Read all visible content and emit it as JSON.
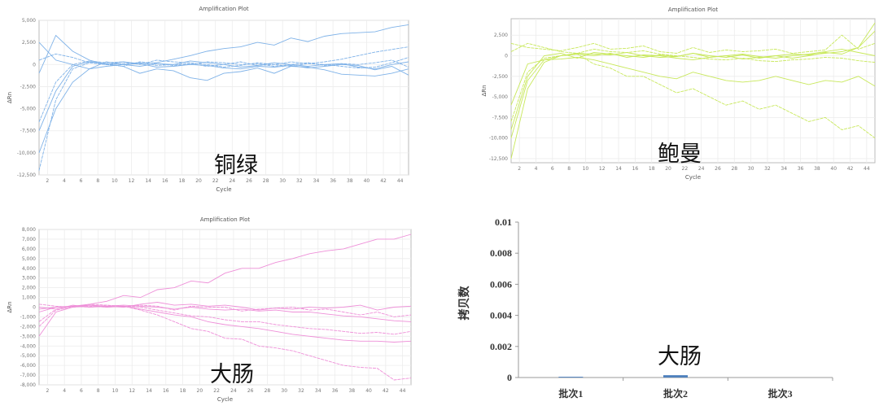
{
  "chart_data": [
    {
      "type": "line",
      "title": "Amplification Plot",
      "xlabel": "Cycle",
      "ylabel": "ΔRn",
      "annotation": "铜绿",
      "color": "#7fb2e8",
      "xlim": [
        1,
        45
      ],
      "ylim": [
        -12500,
        5000
      ],
      "xticks": [
        2,
        4,
        6,
        8,
        10,
        12,
        14,
        16,
        18,
        20,
        22,
        24,
        26,
        28,
        30,
        32,
        34,
        36,
        38,
        40,
        42,
        44
      ],
      "yticks": [
        5000,
        2500,
        0,
        -2500,
        -5000,
        -7500,
        -10000,
        -12500
      ],
      "ytick_labels": [
        "5,000",
        "2,500",
        "0",
        "-2,500",
        "-5,000",
        "-7,500",
        "-10,000",
        "-12,500"
      ],
      "grid": true,
      "x_start": 1,
      "x_step": 2,
      "series": [
        {
          "values": [
            -1000,
            3300,
            1500,
            500,
            0,
            300,
            100,
            200,
            600,
            1000,
            1500,
            1800,
            2000,
            2500,
            2200,
            3000,
            2600,
            3200,
            3500,
            3600,
            3700,
            4200,
            4500
          ]
        },
        {
          "values": [
            -12000,
            -4000,
            -500,
            200,
            0,
            100,
            200,
            -100,
            0,
            100,
            -200,
            0,
            300,
            -100,
            0,
            -200,
            100,
            300,
            600,
            1000,
            1400,
            1700,
            2000
          ]
        },
        {
          "values": [
            -7500,
            -3000,
            -200,
            300,
            100,
            -200,
            -1000,
            -500,
            -700,
            -1500,
            -1800,
            -1000,
            -800,
            -400,
            -1000,
            -200,
            -300,
            -600,
            -1100,
            -1200,
            -1300,
            -1000,
            -500
          ]
        },
        {
          "values": [
            -6500,
            -2000,
            0,
            400,
            200,
            300,
            0,
            500,
            300,
            200,
            0,
            -300,
            -100,
            200,
            0,
            300,
            100,
            0,
            -200,
            -400,
            -300,
            200,
            800
          ]
        },
        {
          "values": [
            -10000,
            -5000,
            -2000,
            -500,
            300,
            0,
            -200,
            100,
            0,
            400,
            200,
            0,
            -300,
            -100,
            200,
            0,
            -200,
            0,
            100,
            -300,
            -500,
            0,
            300
          ]
        },
        {
          "values": [
            500,
            1200,
            800,
            200,
            0,
            -200,
            300,
            100,
            -100,
            0,
            300,
            200,
            0,
            100,
            -200,
            0,
            200,
            -100,
            100,
            0,
            200,
            500,
            -300
          ]
        },
        {
          "values": [
            2500,
            500,
            0,
            -500,
            -200,
            0,
            100,
            -300,
            -200,
            0,
            -100,
            -400,
            -500,
            -200,
            -300,
            -100,
            -400,
            -200,
            0,
            -100,
            -600,
            -200,
            -1200
          ]
        }
      ]
    },
    {
      "type": "line",
      "title": "Amplification Plot",
      "xlabel": "Cycle",
      "ylabel": "ΔRn",
      "annotation": "鲍曼",
      "color": "#c8e85a",
      "xlim": [
        1,
        45
      ],
      "ylim": [
        -13000,
        4500
      ],
      "xticks": [
        2,
        4,
        6,
        8,
        10,
        12,
        14,
        16,
        18,
        20,
        22,
        24,
        26,
        28,
        30,
        32,
        34,
        36,
        38,
        40,
        42,
        44
      ],
      "yticks": [
        2500,
        0,
        -2500,
        -5000,
        -7500,
        -10000,
        -12500
      ],
      "ytick_labels": [
        "2,500",
        "0",
        "-2,500",
        "-5,000",
        "-7,500",
        "-10,000",
        "-12,500"
      ],
      "grid": true,
      "x_start": 1,
      "x_step": 2,
      "series": [
        {
          "values": [
            -12500,
            -4000,
            -800,
            0,
            300,
            200,
            100,
            400,
            0,
            -200,
            -100,
            300,
            0,
            -200,
            100,
            -300,
            0,
            200,
            100,
            300,
            500,
            1000,
            4000
          ]
        },
        {
          "values": [
            -8000,
            -2000,
            -300,
            0,
            200,
            -1000,
            -1500,
            -2500,
            -2500,
            -3500,
            -4500,
            -4000,
            -5000,
            -6000,
            -5500,
            -6500,
            -6000,
            -7000,
            -8000,
            -7500,
            -9000,
            -8500,
            -10000
          ]
        },
        {
          "values": [
            -6000,
            -1000,
            -500,
            -400,
            -200,
            -500,
            -1000,
            -1500,
            -2000,
            -2500,
            -2800,
            -2000,
            -2500,
            -3000,
            -3200,
            -3000,
            -2500,
            -3000,
            -3500,
            -3000,
            -3200,
            -2500,
            -3700
          ]
        },
        {
          "values": [
            1500,
            1000,
            800,
            600,
            1000,
            1500,
            800,
            900,
            1200,
            500,
            300,
            1000,
            400,
            700,
            500,
            600,
            800,
            300,
            500,
            700,
            2500,
            800,
            1500
          ]
        },
        {
          "values": [
            -10000,
            -3000,
            -500,
            0,
            200,
            0,
            300,
            -200,
            100,
            0,
            -300,
            -500,
            -200,
            0,
            -400,
            -200,
            0,
            -300,
            0,
            400,
            200,
            1000,
            3000
          ]
        },
        {
          "values": [
            500,
            1500,
            1000,
            500,
            300,
            800,
            500,
            400,
            600,
            200,
            0,
            -200,
            -400,
            -500,
            -300,
            -600,
            -700,
            -500,
            -400,
            -200,
            -300,
            -600,
            -800
          ]
        },
        {
          "values": [
            -9000,
            -2500,
            0,
            300,
            -300,
            400,
            200,
            0,
            -200,
            100,
            -100,
            300,
            -200,
            0,
            200,
            -100,
            -300,
            0,
            200,
            500,
            800,
            400,
            0
          ]
        }
      ]
    },
    {
      "type": "line",
      "title": "Amplification Plot",
      "xlabel": "Cycle",
      "ylabel": "ΔRn",
      "annotation": "大肠",
      "color": "#ee8fd8",
      "xlim": [
        1,
        45
      ],
      "ylim": [
        -8000,
        8000
      ],
      "xticks": [
        2,
        4,
        6,
        8,
        10,
        12,
        14,
        16,
        18,
        20,
        22,
        24,
        26,
        28,
        30,
        32,
        34,
        36,
        38,
        40,
        42,
        44
      ],
      "yticks": [
        8000,
        7000,
        6000,
        5000,
        4000,
        3000,
        2000,
        1000,
        0,
        -1000,
        -2000,
        -3000,
        -4000,
        -5000,
        -6000,
        -7000,
        -8000
      ],
      "ytick_labels": [
        "8,000",
        "7,000",
        "6,000",
        "5,000",
        "4,000",
        "3,000",
        "2,000",
        "1,000",
        "0",
        "-1,000",
        "-2,000",
        "-3,000",
        "-4,000",
        "-5,000",
        "-6,000",
        "-7,000",
        "-8,000"
      ],
      "grid": true,
      "x_start": 1,
      "x_step": 2,
      "series": [
        {
          "values": [
            -200,
            0,
            100,
            300,
            600,
            1200,
            1000,
            1800,
            2000,
            2700,
            2500,
            3500,
            4000,
            4000,
            4600,
            5000,
            5500,
            5800,
            6000,
            6500,
            7000,
            7000,
            7500
          ]
        },
        {
          "values": [
            -2000,
            -300,
            0,
            100,
            0,
            100,
            -300,
            -800,
            -1500,
            -2200,
            -2500,
            -3200,
            -3300,
            -4000,
            -4200,
            -4500,
            -5000,
            -5500,
            -6000,
            -6200,
            -6300,
            -7500,
            -7300
          ]
        },
        {
          "values": [
            -3000,
            -500,
            0,
            200,
            0,
            100,
            -200,
            -500,
            -800,
            -1000,
            -1500,
            -1800,
            -2000,
            -2200,
            -2500,
            -2800,
            -3000,
            -3200,
            -3400,
            -3500,
            -3500,
            -3600,
            -3500
          ]
        },
        {
          "values": [
            -1500,
            -200,
            100,
            0,
            200,
            100,
            0,
            -300,
            -600,
            -900,
            -1000,
            -1300,
            -1500,
            -1500,
            -1800,
            -2000,
            -2200,
            -2300,
            -2500,
            -2700,
            -2600,
            -2800,
            -2500
          ]
        },
        {
          "values": [
            -500,
            0,
            100,
            200,
            100,
            200,
            100,
            0,
            -200,
            0,
            -200,
            -300,
            -200,
            -400,
            -300,
            -500,
            -500,
            -700,
            -900,
            -1000,
            -1200,
            -1400,
            -1500
          ]
        },
        {
          "values": [
            300,
            100,
            0,
            300,
            200,
            0,
            200,
            100,
            -300,
            100,
            0,
            0,
            -400,
            -200,
            -100,
            0,
            -300,
            -200,
            -500,
            -800,
            -500,
            -1000,
            -800
          ]
        },
        {
          "values": [
            0,
            -200,
            200,
            0,
            100,
            0,
            300,
            500,
            200,
            300,
            100,
            200,
            0,
            -300,
            -100,
            -200,
            0,
            -100,
            0,
            200,
            -300,
            0,
            100
          ]
        }
      ]
    },
    {
      "type": "bar",
      "title": "",
      "xlabel": "",
      "ylabel": "拷贝数",
      "annotation": "大肠",
      "color": "#4f81bd",
      "categories": [
        "批次1",
        "批次2",
        "批次3"
      ],
      "values": [
        5e-05,
        0.00015,
        0
      ],
      "ylim": [
        0,
        0.01
      ],
      "yticks": [
        0,
        0.002,
        0.004,
        0.006,
        0.008,
        0.01
      ],
      "ytick_labels": [
        "0",
        "0.002",
        "0.004",
        "0.006",
        "0.008",
        "0.01"
      ],
      "grid": false
    }
  ]
}
